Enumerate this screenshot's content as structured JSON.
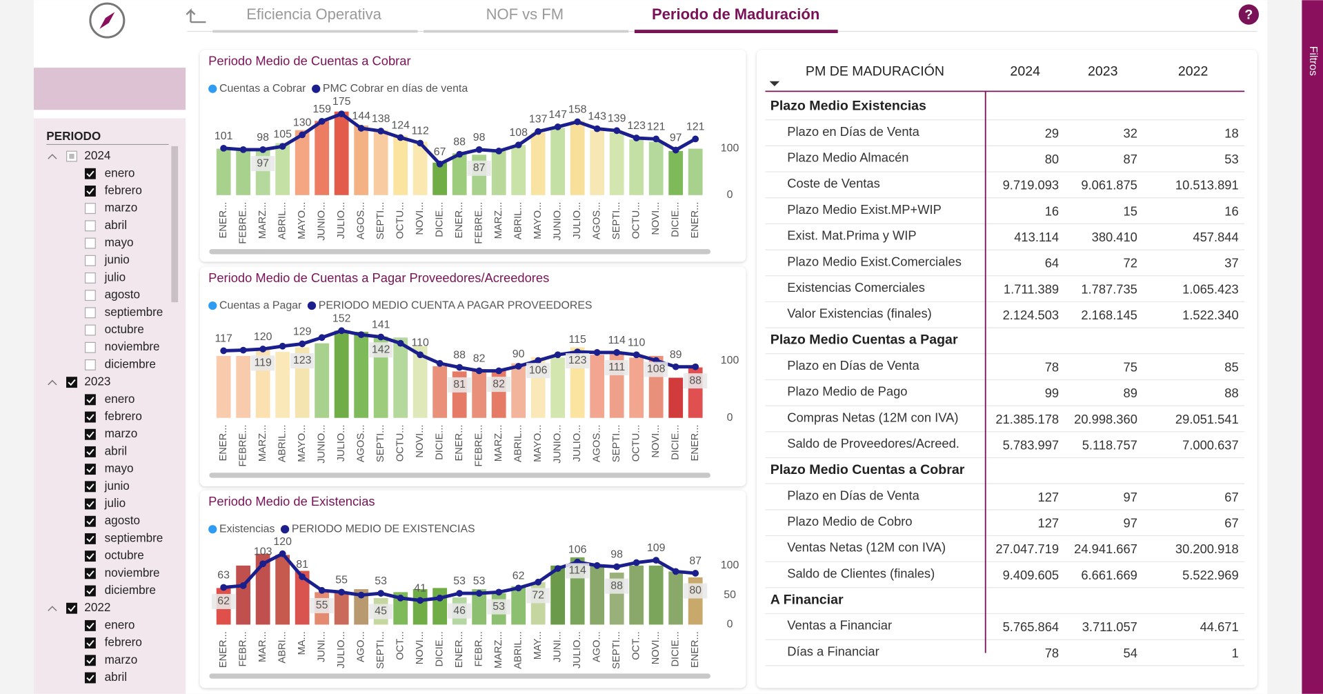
{
  "nav": {
    "tabs": [
      {
        "label": "Eficiencia Operativa",
        "active": false
      },
      {
        "label": "NOF vs FM",
        "active": false
      },
      {
        "label": "Periodo de Maduración",
        "active": true
      }
    ],
    "help": "?"
  },
  "sidebar": {
    "label": "Filtros"
  },
  "slicer": {
    "title": "PERIODO",
    "groups": [
      {
        "label": "2024",
        "state": "partial",
        "items": [
          {
            "label": "enero",
            "checked": true
          },
          {
            "label": "febrero",
            "checked": true
          },
          {
            "label": "marzo",
            "checked": false
          },
          {
            "label": "abril",
            "checked": false
          },
          {
            "label": "mayo",
            "checked": false
          },
          {
            "label": "junio",
            "checked": false
          },
          {
            "label": "julio",
            "checked": false
          },
          {
            "label": "agosto",
            "checked": false
          },
          {
            "label": "septiembre",
            "checked": false
          },
          {
            "label": "octubre",
            "checked": false
          },
          {
            "label": "noviembre",
            "checked": false
          },
          {
            "label": "diciembre",
            "checked": false
          }
        ]
      },
      {
        "label": "2023",
        "state": "checked",
        "items": [
          {
            "label": "enero",
            "checked": true
          },
          {
            "label": "febrero",
            "checked": true
          },
          {
            "label": "marzo",
            "checked": true
          },
          {
            "label": "abril",
            "checked": true
          },
          {
            "label": "mayo",
            "checked": true
          },
          {
            "label": "junio",
            "checked": true
          },
          {
            "label": "julio",
            "checked": true
          },
          {
            "label": "agosto",
            "checked": true
          },
          {
            "label": "septiembre",
            "checked": true
          },
          {
            "label": "octubre",
            "checked": true
          },
          {
            "label": "noviembre",
            "checked": true
          },
          {
            "label": "diciembre",
            "checked": true
          }
        ]
      },
      {
        "label": "2022",
        "state": "checked",
        "items": [
          {
            "label": "enero",
            "checked": true
          },
          {
            "label": "febrero",
            "checked": true
          },
          {
            "label": "marzo",
            "checked": true
          },
          {
            "label": "abril",
            "checked": true
          }
        ]
      }
    ]
  },
  "chart_data": [
    {
      "type": "bar_line",
      "title": "Periodo Medio de Cuentas a Cobrar",
      "categories": [
        "ENER...",
        "FEBRE...",
        "MARZ...",
        "ABRIL...",
        "MAYO...",
        "JUNIO...",
        "JULIO...",
        "AGOS...",
        "SEPTI...",
        "OCTU...",
        "NOVI...",
        "DICIE...",
        "ENER...",
        "FEBRE...",
        "MARZ...",
        "ABRIL...",
        "MAYO...",
        "JUNIO...",
        "JULIO...",
        "AGOS...",
        "SEPTI...",
        "OCTU...",
        "NOVI...",
        "DICIE...",
        "ENER..."
      ],
      "ylim": [
        0,
        190
      ],
      "yticks": [
        0,
        100
      ],
      "series": [
        {
          "name": "Cuentas a Cobrar",
          "color": "#2e9cf2",
          "bar_colors": [
            "#a9d18e",
            "#a9d18e",
            "#b5d99c",
            "#c5e0a5",
            "#f4a582",
            "#ec7c62",
            "#e35b4a",
            "#f4b183",
            "#f8cba0",
            "#fbe3a0",
            "#fae8b0",
            "#70ad47",
            "#9ccc7c",
            "#a9d18e",
            "#b8d99a",
            "#c9e2a8",
            "#f9e3a3",
            "#c5e0a5",
            "#f8e09a",
            "#f6e7b4",
            "#d3e6b0",
            "#c5e0a5",
            "#b5d99c",
            "#7fba5a",
            "#a9d18e"
          ],
          "values": [
            100,
            96,
            97,
            112,
            140,
            160,
            180,
            150,
            140,
            128,
            115,
            70,
            90,
            87,
            95,
            108,
            135,
            145,
            160,
            140,
            135,
            120,
            115,
            95,
            100
          ],
          "value_labels": [
            null,
            null,
            "97",
            null,
            null,
            null,
            null,
            null,
            null,
            null,
            null,
            null,
            null,
            "87",
            null,
            null,
            null,
            null,
            null,
            null,
            null,
            null,
            null,
            null,
            null
          ]
        },
        {
          "name": "PMC Cobrar en días de venta",
          "color": "#1a1f8c",
          "values": [
            101,
            98,
            98,
            105,
            130,
            159,
            175,
            144,
            138,
            124,
            112,
            67,
            88,
            98,
            95,
            108,
            137,
            147,
            158,
            143,
            139,
            123,
            121,
            97,
            121
          ],
          "value_labels": [
            "101",
            null,
            "98",
            "105",
            "130",
            "159",
            "175",
            "144",
            "138",
            "124",
            "112",
            "67",
            "88",
            "98",
            null,
            "108",
            "137",
            "147",
            "158",
            "143",
            "139",
            "123",
            "121",
            "97",
            "121"
          ]
        }
      ]
    },
    {
      "type": "bar_line",
      "title": "Periodo Medio de Cuentas a Pagar Proveedores/Acreedores",
      "categories": [
        "ENER...",
        "FEBRE...",
        "MARZ...",
        "ABRIL...",
        "MAYO...",
        "JUNIO...",
        "JULIO...",
        "AGOS...",
        "SEPTI...",
        "OCTU...",
        "NOVI...",
        "DICIE...",
        "ENER...",
        "FEBRE...",
        "MARZ...",
        "ABRIL...",
        "MAYO...",
        "JUNIO...",
        "JULIO...",
        "AGOS...",
        "SEPTI...",
        "OCTU...",
        "NOVI...",
        "DICIE...",
        "ENER..."
      ],
      "ylim": [
        0,
        165
      ],
      "yticks": [
        0,
        100
      ],
      "series": [
        {
          "name": "Cuentas a Pagar",
          "color": "#2e9cf2",
          "bar_colors": [
            "#f8cbad",
            "#f8cbad",
            "#fbe0b0",
            "#fbe8b8",
            "#f4e4b0",
            "#a9d18e",
            "#70ad47",
            "#7fba5a",
            "#9ccc7c",
            "#b5d99c",
            "#dfe8b8",
            "#e8907a",
            "#e57a66",
            "#e8907a",
            "#e57a66",
            "#f2b49a",
            "#fbe8b8",
            "#d3e6b0",
            "#fbe3a0",
            "#f2a690",
            "#eea08a",
            "#f2a690",
            "#e8907a",
            "#d13b3b",
            "#e05050"
          ],
          "values": [
            108,
            108,
            119,
            115,
            123,
            130,
            152,
            150,
            142,
            140,
            125,
            90,
            81,
            85,
            82,
            95,
            106,
            105,
            123,
            110,
            111,
            105,
            108,
            70,
            88
          ],
          "value_labels": [
            null,
            null,
            "119",
            null,
            "123",
            null,
            null,
            null,
            "142",
            null,
            null,
            null,
            "81",
            null,
            "82",
            null,
            "106",
            null,
            "123",
            null,
            "111",
            null,
            "108",
            null,
            "88"
          ]
        },
        {
          "name": "PERIODO MEDIO CUENTA A PAGAR PROVEEDORES",
          "color": "#1a1f8c",
          "values": [
            117,
            118,
            120,
            125,
            129,
            140,
            152,
            145,
            141,
            130,
            110,
            95,
            88,
            82,
            82,
            90,
            100,
            110,
            115,
            114,
            114,
            110,
            100,
            89,
            89
          ],
          "value_labels": [
            "117",
            null,
            "120",
            null,
            "129",
            null,
            "152",
            null,
            "141",
            null,
            "110",
            null,
            "88",
            "82",
            null,
            "90",
            null,
            null,
            "115",
            null,
            "114",
            "110",
            null,
            "89",
            null
          ]
        }
      ]
    },
    {
      "type": "bar_line",
      "title": "Periodo Medio de Existencias",
      "categories": [
        "ENER...",
        "FEBR...",
        "MAR...",
        "ABRI...",
        "MA...",
        "JUNI...",
        "JULIO...",
        "AGO...",
        "SEPTI...",
        "OCT...",
        "NOVI...",
        "DICIE...",
        "ENER...",
        "FEBR...",
        "MARZ...",
        "ABRIL...",
        "MAY...",
        "JUNI...",
        "JULIO...",
        "AGO...",
        "SEPTI...",
        "OCT...",
        "NOVI...",
        "DICIE...",
        "ENER..."
      ],
      "ylim": [
        0,
        125
      ],
      "yticks": [
        0,
        50,
        100
      ],
      "series": [
        {
          "name": "Existencias",
          "color": "#2e9cf2",
          "bar_colors": [
            "#e0504a",
            "#c0504d",
            "#c0504d",
            "#c65a4e",
            "#d9534f",
            "#e38a70",
            "#c96a5a",
            "#b99a70",
            "#c5d6a0",
            "#7fba5a",
            "#70ad47",
            "#70ad47",
            "#b4d6a0",
            "#8cbf6f",
            "#8cbf6f",
            "#8cbf6f",
            "#c5d6a0",
            "#6a9a4a",
            "#7aa55a",
            "#8aa86a",
            "#9ab07a",
            "#8aa86a",
            "#7aa55a",
            "#8aa86a",
            "#c9a96b"
          ],
          "values": [
            62,
            100,
            120,
            118,
            91,
            55,
            55,
            60,
            45,
            55,
            60,
            62,
            46,
            60,
            53,
            65,
            72,
            100,
            114,
            100,
            88,
            100,
            100,
            90,
            80
          ],
          "value_labels": [
            "62",
            null,
            null,
            null,
            null,
            "55",
            null,
            null,
            "45",
            null,
            null,
            null,
            "46",
            null,
            "53",
            null,
            "72",
            null,
            "114",
            null,
            "88",
            null,
            null,
            null,
            "80"
          ]
        },
        {
          "name": "PERIODO MEDIO DE EXISTENCIAS",
          "color": "#1a1f8c",
          "values": [
            63,
            66,
            103,
            120,
            81,
            58,
            55,
            50,
            53,
            45,
            41,
            45,
            53,
            53,
            55,
            62,
            72,
            95,
            106,
            100,
            98,
            105,
            109,
            90,
            87
          ],
          "value_labels": [
            "63",
            null,
            "103",
            "120",
            "81",
            null,
            "55",
            null,
            "53",
            null,
            "41",
            null,
            "53",
            "53",
            null,
            "62",
            null,
            null,
            "106",
            null,
            "98",
            null,
            "109",
            null,
            "87"
          ]
        }
      ]
    }
  ],
  "table": {
    "headers": [
      "PM DE MADURACIÓN",
      "2024",
      "2023",
      "2022"
    ],
    "sections": [
      {
        "title": "Plazo Medio Existencias",
        "rows": [
          [
            "Plazo en Días de Venta",
            "29",
            "32",
            "18"
          ],
          [
            "Plazo Medio Almacén",
            "80",
            "87",
            "53"
          ],
          [
            "Coste de Ventas",
            "9.719.093",
            "9.061.875",
            "10.513.891"
          ],
          [
            "Plazo Medio Exist.MP+WIP",
            "16",
            "15",
            "16"
          ],
          [
            "Exist. Mat.Prima y WIP",
            "413.114",
            "380.410",
            "457.844"
          ],
          [
            "Plazo Medio Exist.Comerciales",
            "64",
            "72",
            "37"
          ],
          [
            "Existencias Comerciales",
            "1.711.389",
            "1.787.735",
            "1.065.423"
          ],
          [
            "Valor Existencias (finales)",
            "2.124.503",
            "2.168.145",
            "1.522.340"
          ]
        ]
      },
      {
        "title": "Plazo Medio Cuentas a Pagar",
        "rows": [
          [
            "Plazo en Días de Venta",
            "78",
            "75",
            "85"
          ],
          [
            "Plazo Medio de Pago",
            "99",
            "89",
            "88"
          ],
          [
            "Compras Netas (12M con IVA)",
            "21.385.178",
            "20.998.360",
            "29.051.541"
          ],
          [
            "Saldo de Proveedores/Acreed.",
            "5.783.997",
            "5.118.757",
            "7.000.637"
          ]
        ]
      },
      {
        "title": "Plazo Medio Cuentas a Cobrar",
        "rows": [
          [
            "Plazo en Días de Venta",
            "127",
            "97",
            "67"
          ],
          [
            "Plazo Medio de Cobro",
            "127",
            "97",
            "67"
          ],
          [
            "Ventas Netas (12M con IVA)",
            "27.047.719",
            "24.941.667",
            "30.200.918"
          ],
          [
            "Saldo de Clientes (finales)",
            "9.409.605",
            "6.661.669",
            "5.522.969"
          ]
        ]
      },
      {
        "title": "A Financiar",
        "rows": [
          [
            "Ventas a Financiar",
            "5.765.864",
            "3.711.057",
            "44.671"
          ],
          [
            "Días a Financiar",
            "78",
            "54",
            "1"
          ]
        ]
      }
    ]
  }
}
